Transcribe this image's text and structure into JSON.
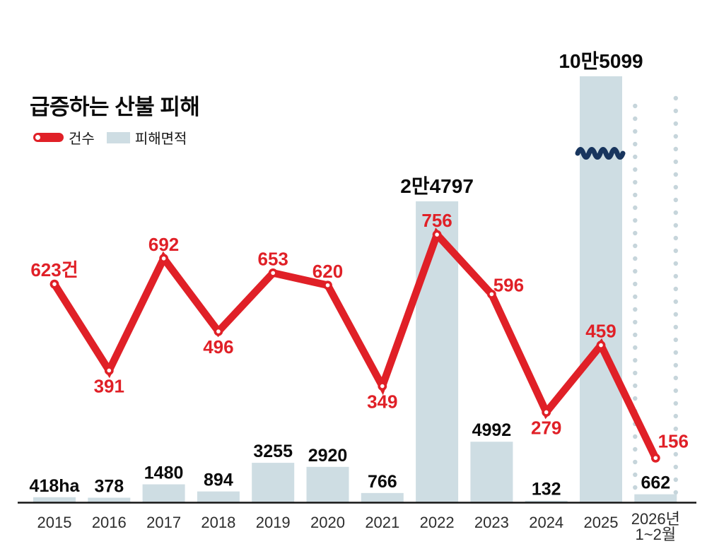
{
  "title": "급증하는 산불 피해",
  "legend": {
    "line_label": "건수",
    "bar_label": "피해면적"
  },
  "colors": {
    "background": "#ffffff",
    "line": "#e02027",
    "bar_fill": "#cedde3",
    "break_wave": "#18355e",
    "dotted_guide": "#c6d5db",
    "axis": "#151515",
    "bar_value_label": "#0b0b0b",
    "year_label": "#2d2d2d",
    "title_text": "#0a0a0a"
  },
  "chart_data": {
    "type": "combo bar+line",
    "title": "급증하는 산불 피해",
    "categories": [
      "2015",
      "2016",
      "2017",
      "2018",
      "2019",
      "2020",
      "2021",
      "2022",
      "2023",
      "2024",
      "2025",
      "2026년\n1~2월"
    ],
    "series": [
      {
        "name": "건수",
        "type": "line",
        "unit": "건",
        "values": [
          623,
          391,
          692,
          496,
          653,
          620,
          349,
          756,
          596,
          279,
          459,
          156
        ],
        "point_labels": [
          "623건",
          "391",
          "692",
          "496",
          "653",
          "620",
          "349",
          "756",
          "596",
          "279",
          "459",
          "156"
        ],
        "label_placements": [
          "above",
          "below",
          "above",
          "below",
          "above",
          "above",
          "below",
          "above",
          "above-right",
          "below",
          "above",
          "right-up"
        ]
      },
      {
        "name": "피해면적",
        "type": "bar",
        "unit": "ha",
        "values": [
          418,
          378,
          1480,
          894,
          3255,
          2920,
          766,
          24797,
          4992,
          132,
          105099,
          662
        ],
        "bar_labels": [
          "418ha",
          "378",
          "1480",
          "894",
          "3255",
          "2920",
          "766",
          "2만4797",
          "4992",
          "132",
          "10만5099",
          "662"
        ]
      }
    ],
    "annotations": {
      "broken_bar_index": 10,
      "broken_bar_note": "2025 bar is clipped with a navy axis-break squiggle",
      "partial_period_index": 11,
      "partial_period_note": "2026년 1~2월 column framed by vertical dotted guides"
    },
    "legend_position": "top-left",
    "grid": false,
    "ylabel": "",
    "xlabel": ""
  }
}
